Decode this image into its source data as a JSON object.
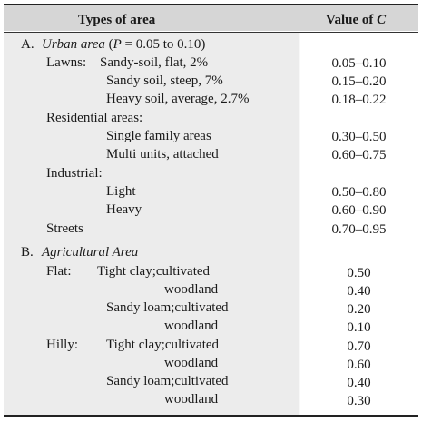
{
  "header": {
    "col1": "Types of area",
    "col2_prefix": "Value of ",
    "col2_var": "C"
  },
  "urban": {
    "letter": "A.",
    "title": "Urban area",
    "param_open": "(",
    "param_var": "P",
    "param_rest": " = 0.05 to 0.10)",
    "lawns_label": "Lawns:",
    "lawns": [
      {
        "label": "Sandy-soil, flat, 2%",
        "value": "0.05–0.10"
      },
      {
        "label": "Sandy soil, steep, 7%",
        "value": "0.15–0.20"
      },
      {
        "label": "Heavy soil, average, 2.7%",
        "value": "0.18–0.22"
      }
    ],
    "residential_label": "Residential areas:",
    "residential": [
      {
        "label": "Single family areas",
        "value": "0.30–0.50"
      },
      {
        "label": "Multi units, attached",
        "value": "0.60–0.75"
      }
    ],
    "industrial_label": "Industrial:",
    "industrial": [
      {
        "label": "Light",
        "value": "0.50–0.80"
      },
      {
        "label": "Heavy",
        "value": "0.60–0.90"
      }
    ],
    "streets": {
      "label": "Streets",
      "value": "0.70–0.95"
    }
  },
  "agri": {
    "letter": "B.",
    "title": "Agricultural Area",
    "flat_label": "Flat:",
    "hilly_label": "Hilly:",
    "flat": {
      "clay": {
        "label": "Tight clay;cultivated",
        "value": "0.50",
        "wood": "woodland",
        "wood_value": "0.40"
      },
      "loam": {
        "label": "Sandy loam;cultivated",
        "value": "0.20",
        "wood": "woodland",
        "wood_value": "0.10"
      }
    },
    "hilly": {
      "clay": {
        "label": "Tight clay;cultivated",
        "value": "0.70",
        "wood": "woodland",
        "wood_value": "0.60"
      },
      "loam": {
        "label": "Sandy loam;cultivated",
        "value": "0.40",
        "wood": "woodland",
        "wood_value": "0.30"
      }
    }
  }
}
